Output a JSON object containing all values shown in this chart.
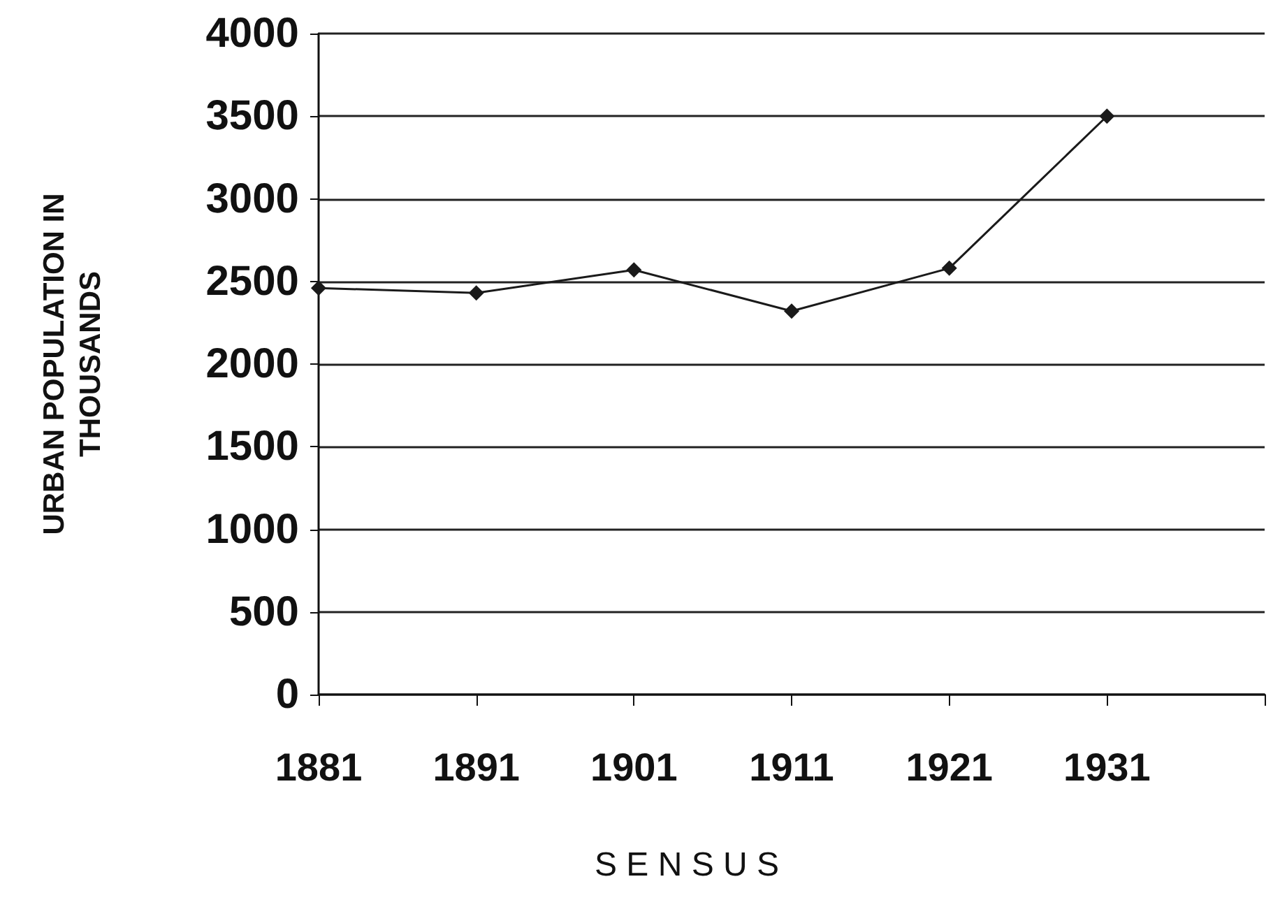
{
  "chart_data": {
    "type": "line",
    "xlabel": "S E N S U S",
    "ylabel": "URBAN POPULATION IN\nTHOUSANDS",
    "categories": [
      "1881",
      "1891",
      "1901",
      "1911",
      "1921",
      "1931",
      null
    ],
    "series": [
      {
        "color": "#1a1a1a",
        "values": [
          2460,
          2430,
          2570,
          2320,
          2580,
          3500,
          null
        ]
      }
    ],
    "ylim": [
      0,
      4000
    ],
    "yticks": [
      0,
      500,
      1000,
      1500,
      2000,
      2500,
      3000,
      3500,
      4000
    ],
    "grid": "y",
    "marker": "diamond",
    "line_style": "solid"
  }
}
